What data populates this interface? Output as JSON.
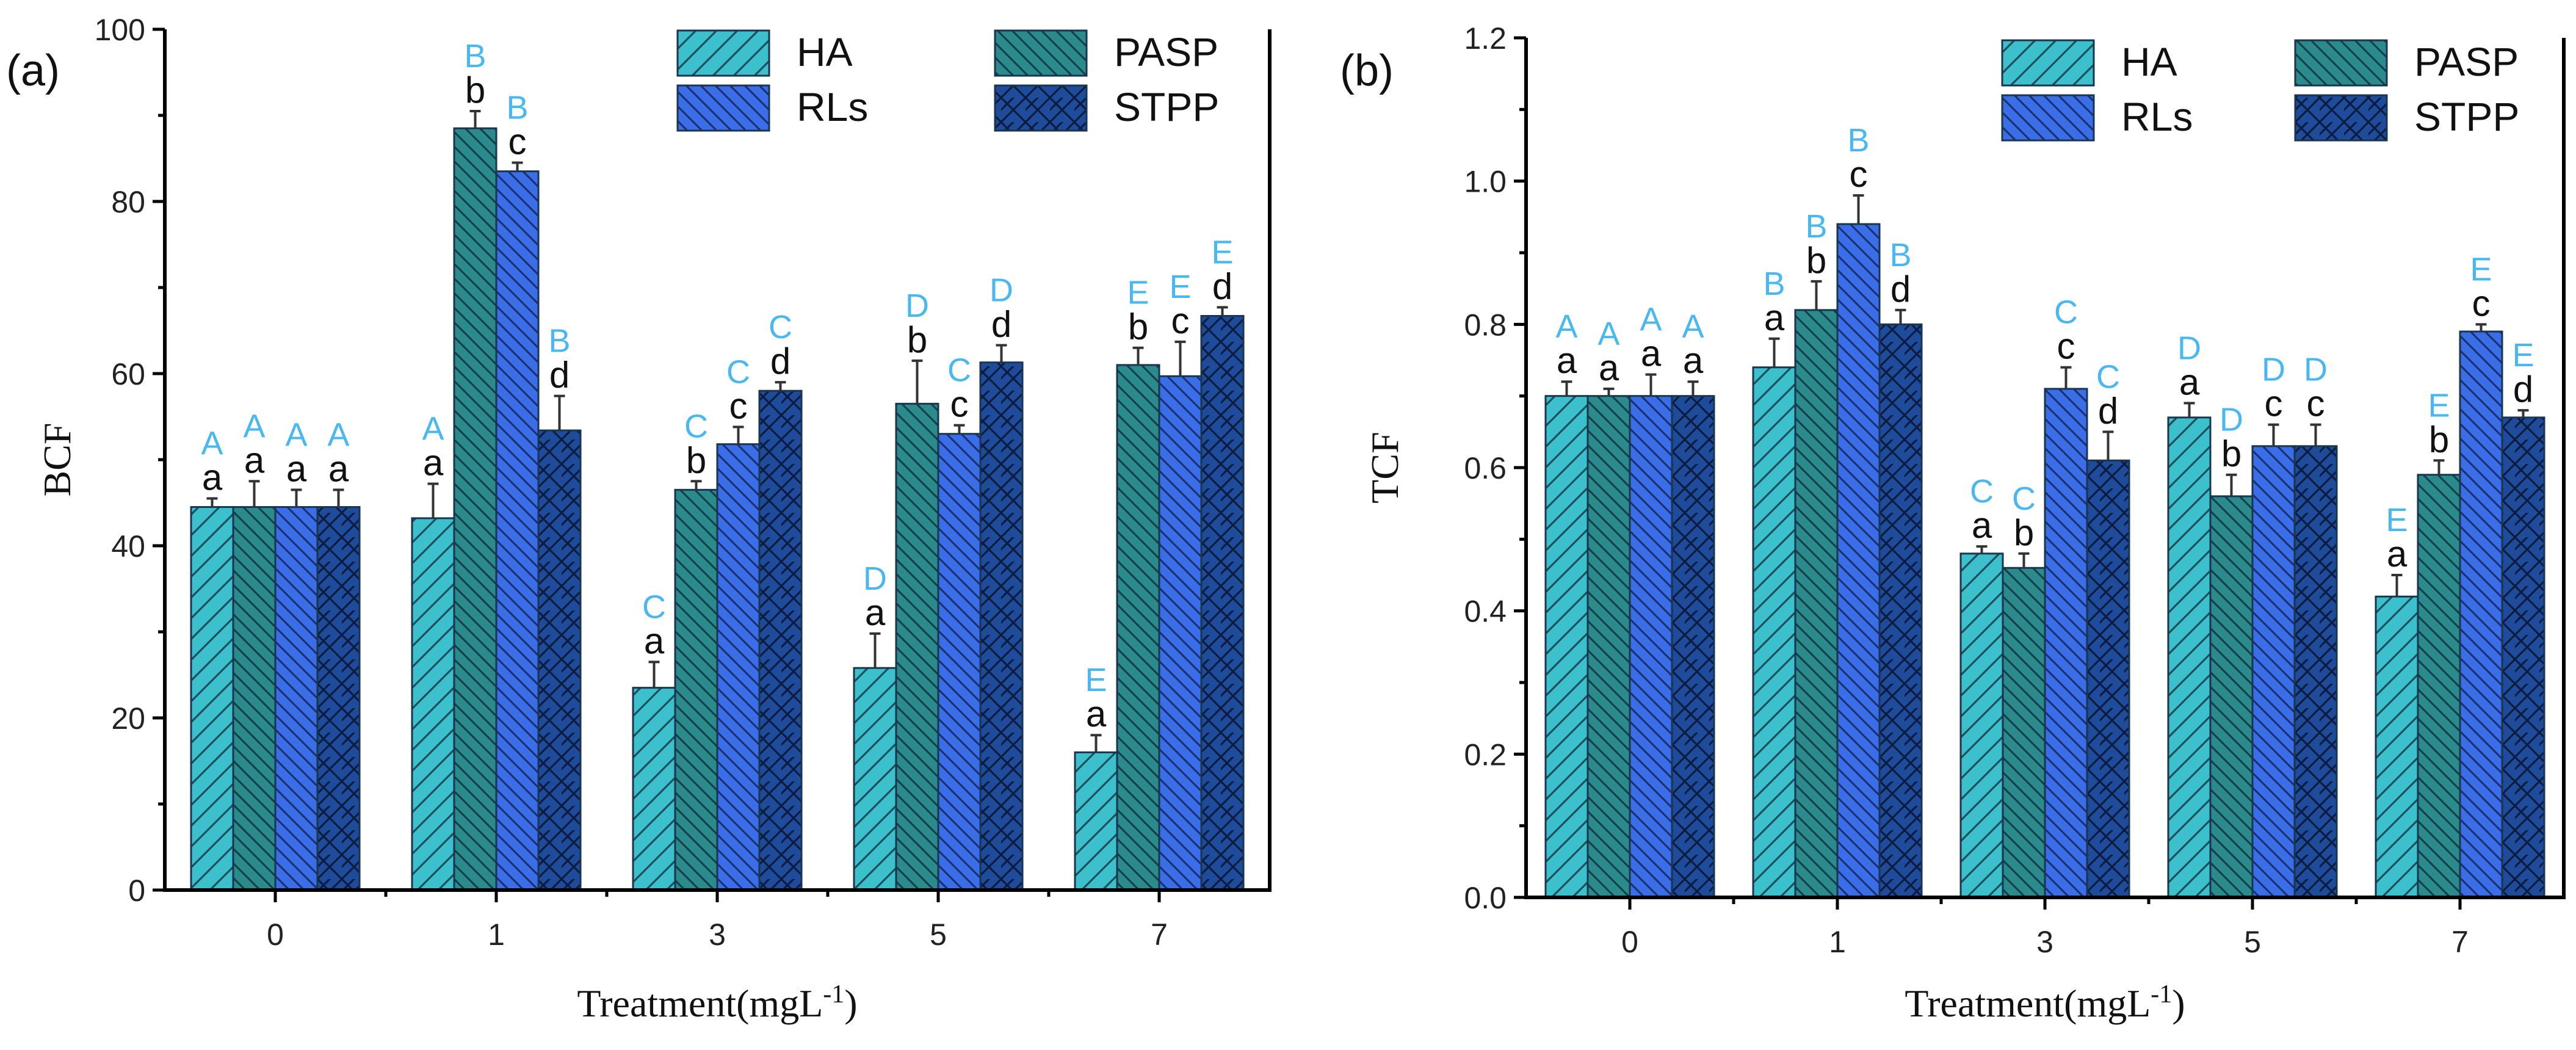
{
  "colors": {
    "HA": "#3cc0cc",
    "PASP": "#2a8a8c",
    "RLs": "#3a6ee8",
    "STPP": "#1f4c9a",
    "letter_upper": "#4ab8f0",
    "letter_lower": "#111111"
  },
  "chart_data": [
    {
      "type": "bar",
      "panel_label": "(a)",
      "xlabel": "Treatment(mgL",
      "xlabel_sup": "-1",
      "xlabel_close": ")",
      "ylabel": "BCF",
      "ylim": [
        0,
        100
      ],
      "yticks": [
        "0",
        "20",
        "40",
        "60",
        "80",
        "100"
      ],
      "categories": [
        "0",
        "1",
        "3",
        "5",
        "7"
      ],
      "legend": [
        "HA",
        "PASP",
        "RLs",
        "STPP"
      ],
      "legend_position": "top-right",
      "series": [
        {
          "name": "HA",
          "values": [
            44.5,
            43.2,
            23.5,
            25.8,
            16.0
          ],
          "errors": [
            1.0,
            4.0,
            3.0,
            4.0,
            2.0
          ],
          "lower": [
            "a",
            "a",
            "a",
            "a",
            "a"
          ],
          "upper": [
            "A",
            "A",
            "C",
            "D",
            "E"
          ]
        },
        {
          "name": "PASP",
          "values": [
            44.5,
            88.5,
            46.5,
            56.5,
            61.0
          ],
          "errors": [
            3.0,
            2.0,
            1.0,
            5.0,
            2.0
          ],
          "lower": [
            "a",
            "b",
            "b",
            "b",
            "b"
          ],
          "upper": [
            "A",
            "B",
            "C",
            "D",
            "E"
          ]
        },
        {
          "name": "RLs",
          "values": [
            44.5,
            83.5,
            51.8,
            53.0,
            59.7
          ],
          "errors": [
            2.0,
            1.0,
            2.0,
            1.0,
            4.0
          ],
          "lower": [
            "a",
            "c",
            "c",
            "c",
            "c"
          ],
          "upper": [
            "A",
            "B",
            "C",
            "C",
            "E"
          ]
        },
        {
          "name": "STPP",
          "values": [
            44.5,
            53.4,
            58.0,
            61.3,
            66.7
          ],
          "errors": [
            2.0,
            4.0,
            1.0,
            2.0,
            1.0
          ],
          "lower": [
            "a",
            "d",
            "d",
            "d",
            "d"
          ],
          "upper": [
            "A",
            "B",
            "C",
            "D",
            "E"
          ]
        }
      ]
    },
    {
      "type": "bar",
      "panel_label": "(b)",
      "xlabel": "Treatment(mgL",
      "xlabel_sup": "-1",
      "xlabel_close": ")",
      "ylabel": "TCF",
      "ylim": [
        0,
        1.2
      ],
      "yticks": [
        "0.0",
        "0.2",
        "0.4",
        "0.6",
        "0.8",
        "1.0",
        "1.2"
      ],
      "categories": [
        "0",
        "1",
        "3",
        "5",
        "7"
      ],
      "legend": [
        "HA",
        "PASP",
        "RLs",
        "STPP"
      ],
      "legend_position": "top-right",
      "series": [
        {
          "name": "HA",
          "values": [
            0.7,
            0.74,
            0.48,
            0.67,
            0.42
          ],
          "errors": [
            0.02,
            0.04,
            0.01,
            0.02,
            0.03
          ],
          "lower": [
            "a",
            "a",
            "a",
            "a",
            "a"
          ],
          "upper": [
            "A",
            "B",
            "C",
            "D",
            "E"
          ]
        },
        {
          "name": "PASP",
          "values": [
            0.7,
            0.82,
            0.46,
            0.56,
            0.59
          ],
          "errors": [
            0.01,
            0.04,
            0.02,
            0.03,
            0.02
          ],
          "lower": [
            "a",
            "b",
            "b",
            "b",
            "b"
          ],
          "upper": [
            "A",
            "B",
            "C",
            "D",
            "E"
          ]
        },
        {
          "name": "RLs",
          "values": [
            0.7,
            0.94,
            0.71,
            0.63,
            0.79
          ],
          "errors": [
            0.03,
            0.04,
            0.03,
            0.03,
            0.01
          ],
          "lower": [
            "a",
            "c",
            "c",
            "c",
            "c"
          ],
          "upper": [
            "A",
            "B",
            "C",
            "D",
            "E"
          ]
        },
        {
          "name": "STPP",
          "values": [
            0.7,
            0.8,
            0.61,
            0.63,
            0.67
          ],
          "errors": [
            0.02,
            0.02,
            0.04,
            0.03,
            0.01
          ],
          "lower": [
            "a",
            "d",
            "d",
            "c",
            "d"
          ],
          "upper": [
            "A",
            "B",
            "C",
            "D",
            "E"
          ]
        }
      ]
    }
  ]
}
